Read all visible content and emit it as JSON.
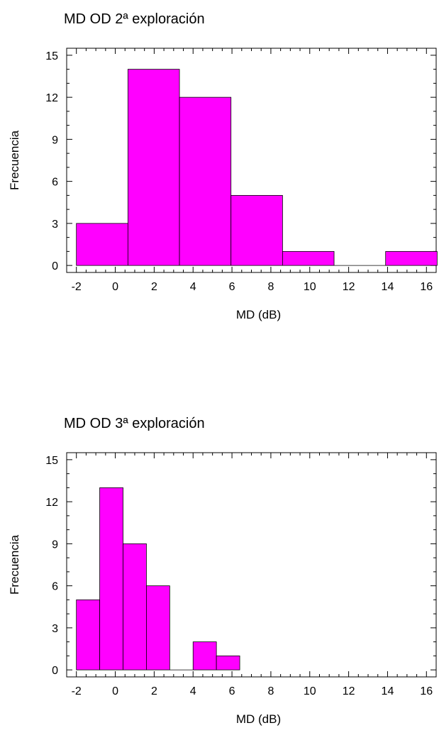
{
  "chart_data": [
    {
      "type": "bar",
      "title": "MD OD 2ª exploración",
      "xlabel": "MD (dB)",
      "ylabel": "Frecuencia",
      "xlim": [
        -2.5,
        16.5
      ],
      "ylim": [
        -0.5,
        15.5
      ],
      "xticks": [
        "-2",
        "0",
        "2",
        "4",
        "6",
        "8",
        "10",
        "12",
        "14",
        "16"
      ],
      "yticks": [
        "0",
        "3",
        "6",
        "9",
        "12",
        "15"
      ],
      "bins": [
        {
          "from": -2.0,
          "to": 0.65,
          "value": 3
        },
        {
          "from": 0.65,
          "to": 3.3,
          "value": 14
        },
        {
          "from": 3.3,
          "to": 5.95,
          "value": 12
        },
        {
          "from": 5.95,
          "to": 8.6,
          "value": 5
        },
        {
          "from": 8.6,
          "to": 11.25,
          "value": 1
        },
        {
          "from": 11.25,
          "to": 13.9,
          "value": 0
        },
        {
          "from": 13.9,
          "to": 16.55,
          "value": 1
        }
      ],
      "bar_color": "#ff00ff"
    },
    {
      "type": "bar",
      "title": "MD OD 3ª exploración",
      "xlabel": "MD (dB)",
      "ylabel": "Frecuencia",
      "xlim": [
        -2.5,
        16.5
      ],
      "ylim": [
        -0.5,
        15.5
      ],
      "xticks": [
        "-2",
        "0",
        "2",
        "4",
        "6",
        "8",
        "10",
        "12",
        "14",
        "16"
      ],
      "yticks": [
        "0",
        "3",
        "6",
        "9",
        "12",
        "15"
      ],
      "bins": [
        {
          "from": -2.0,
          "to": -0.8,
          "value": 5
        },
        {
          "from": -0.8,
          "to": 0.4,
          "value": 13
        },
        {
          "from": 0.4,
          "to": 1.6,
          "value": 9
        },
        {
          "from": 1.6,
          "to": 2.8,
          "value": 6
        },
        {
          "from": 2.8,
          "to": 4.0,
          "value": 0
        },
        {
          "from": 4.0,
          "to": 5.2,
          "value": 2
        },
        {
          "from": 5.2,
          "to": 6.4,
          "value": 1
        }
      ],
      "bar_color": "#ff00ff"
    }
  ]
}
